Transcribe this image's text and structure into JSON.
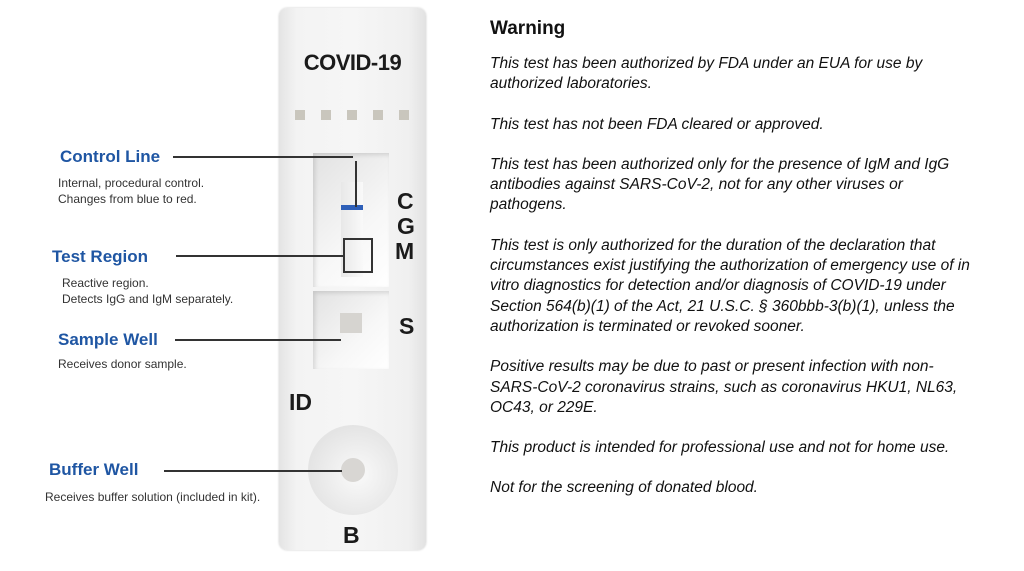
{
  "cassette": {
    "brand": "COVID-19",
    "letters": {
      "c": "C",
      "g": "G",
      "m": "M",
      "s": "S",
      "id": "ID",
      "b": "B"
    },
    "control_line_color": "#2e5fb8"
  },
  "callouts": [
    {
      "title": "Control Line",
      "lines": [
        "Internal, procedural control.",
        "Changes from blue to red."
      ]
    },
    {
      "title": "Test Region",
      "lines": [
        "Reactive region.",
        "Detects IgG and IgM separately."
      ]
    },
    {
      "title": "Sample Well",
      "lines": [
        "Receives donor sample."
      ]
    },
    {
      "title": "Buffer Well",
      "lines": [
        "Receives buffer solution (included in kit)."
      ]
    }
  ],
  "accent_color": "#1f56a3",
  "warning": {
    "heading": "Warning",
    "paragraphs": [
      "This test has been authorized by FDA under an EUA for use by authorized laboratories.",
      "This test has not been FDA cleared or approved.",
      "This test has been authorized only for the presence of IgM and IgG antibodies against SARS-CoV-2, not for any other viruses or pathogens.",
      "This test is only authorized for the duration of the declaration that circumstances exist justifying the authorization of emergency use of in vitro diagnostics for detection and/or diagnosis of COVID-19 under Section 564(b)(1) of the Act, 21 U.S.C. § 360bbb-3(b)(1), unless the authorization is terminated or revoked sooner.",
      "Positive results may be due to past or present infection with non-SARS-CoV-2 coronavirus strains, such as coronavirus HKU1, NL63, OC43, or 229E.",
      "This product is intended for professional use and not for home use.",
      "Not for the screening of donated blood."
    ]
  }
}
